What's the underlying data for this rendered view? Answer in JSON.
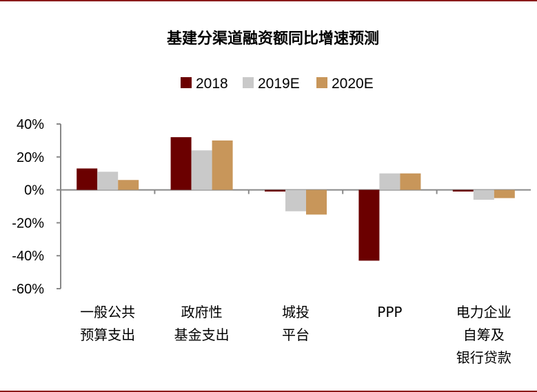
{
  "chart_data": {
    "type": "bar",
    "title": "基建分渠道融资额同比增速预测",
    "categories": [
      [
        "一般公共",
        "预算支出"
      ],
      [
        "政府性",
        "基金支出"
      ],
      [
        "城投",
        "平台"
      ],
      [
        "PPP"
      ],
      [
        "电力企业",
        "自筹及",
        "银行贷款"
      ]
    ],
    "series": [
      {
        "name": "2018",
        "color": "#6b0000",
        "values": [
          13,
          32,
          -1,
          -43,
          -1
        ]
      },
      {
        "name": "2019E",
        "color": "#c9c9c9",
        "values": [
          11,
          24,
          -13,
          10,
          -6
        ]
      },
      {
        "name": "2020E",
        "color": "#c8965a",
        "values": [
          6,
          30,
          -15,
          10,
          -5
        ]
      }
    ],
    "ylim": [
      -60,
      40
    ],
    "yticks": [
      "40%",
      "20%",
      "0%",
      "-20%",
      "-40%",
      "-60%"
    ],
    "ytick_values": [
      40,
      20,
      0,
      -20,
      -40,
      -60
    ],
    "legend_position": "top-center",
    "grid": false
  }
}
